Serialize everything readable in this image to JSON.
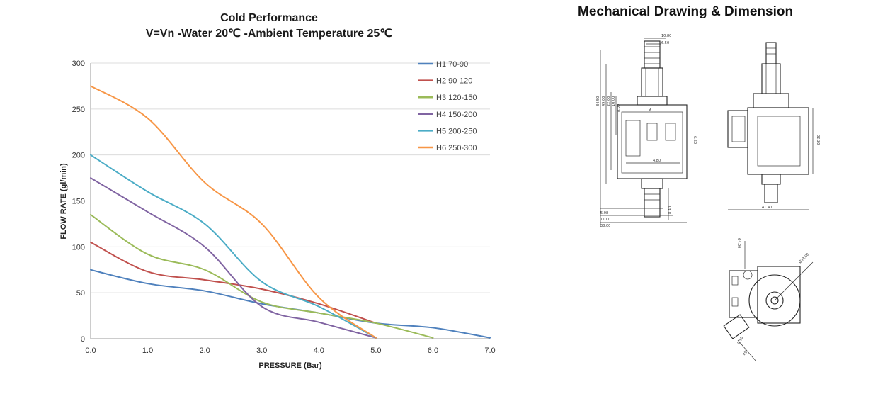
{
  "chart_data": {
    "type": "line",
    "title": "Cold Performance",
    "subtitle": "V=Vn -Water 20℃ -Ambient Temperature 25℃",
    "xlabel": "PRESSURE (Bar)",
    "ylabel": "FLOW RATE (gl/min)",
    "xlim": [
      0,
      7
    ],
    "ylim": [
      0,
      300
    ],
    "xticks": [
      "0.0",
      "1.0",
      "2.0",
      "3.0",
      "4.0",
      "5.0",
      "6.0",
      "7.0"
    ],
    "yticks": [
      "0",
      "50",
      "100",
      "150",
      "200",
      "250",
      "300"
    ],
    "grid": "horizontal",
    "legend_position": "top-right",
    "series": [
      {
        "name": "H1 70-90",
        "color": "#4f81bd",
        "x": [
          0,
          1,
          2,
          3,
          4,
          5,
          6,
          7
        ],
        "y": [
          75,
          60,
          52,
          38,
          28,
          17,
          12,
          1
        ]
      },
      {
        "name": "H2 90-120",
        "color": "#c0504d",
        "x": [
          0,
          1,
          2,
          3,
          4,
          5
        ],
        "y": [
          105,
          73,
          64,
          54,
          38,
          17
        ]
      },
      {
        "name": "H3 120-150",
        "color": "#9bbb59",
        "x": [
          0,
          1,
          2,
          3,
          4,
          5,
          6
        ],
        "y": [
          135,
          92,
          75,
          40,
          28,
          17,
          1
        ]
      },
      {
        "name": "H4 150-200",
        "color": "#8064a2",
        "x": [
          0,
          1,
          2,
          3,
          4,
          5
        ],
        "y": [
          175,
          138,
          100,
          35,
          18,
          1
        ]
      },
      {
        "name": "H5 200-250",
        "color": "#4bacc6",
        "x": [
          0,
          1,
          2,
          3,
          4,
          5
        ],
        "y": [
          200,
          160,
          125,
          62,
          35,
          1
        ]
      },
      {
        "name": "H6 250-300",
        "color": "#f79646",
        "x": [
          0,
          1,
          2,
          3,
          4,
          5
        ],
        "y": [
          275,
          240,
          170,
          125,
          45,
          1
        ]
      }
    ]
  },
  "drawing": {
    "title": "Mechanical Drawing & Dimension",
    "dimensions": {
      "front_width_top": "10.80",
      "front_width_inner": "6.50",
      "total_height": "84.50",
      "height_2": "49.00",
      "height_3": "22.00",
      "height_4": "10.00",
      "height_5": "8.00",
      "small_9": "9",
      "width_inner": "4.80",
      "side_small": "6.60",
      "bottom_1": "5.08",
      "bottom_2": "11.00",
      "bottom_3": "38.00",
      "bottom_right": "8.40",
      "side_height": "32.20",
      "side_width": "41.40",
      "bottom_angle": "64.00",
      "diameter": "Ø33.00",
      "bottom_small_1": "8.50",
      "bottom_small_2": "45°"
    }
  }
}
